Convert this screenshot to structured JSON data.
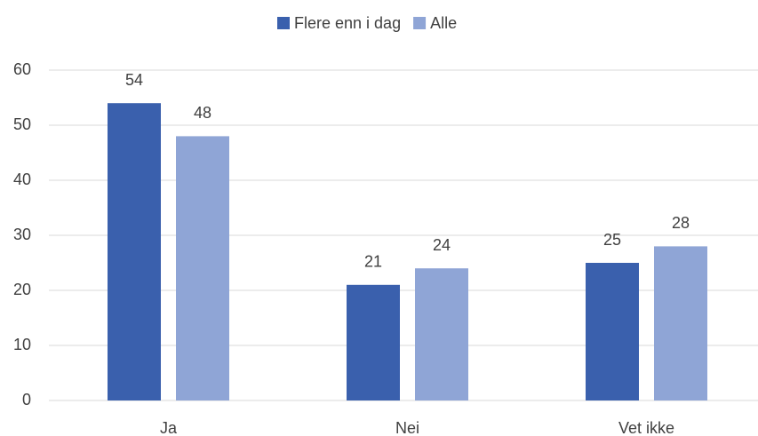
{
  "chart_data": {
    "type": "bar",
    "categories": [
      "Ja",
      "Nei",
      "Vet ikke"
    ],
    "series": [
      {
        "name": "Flere enn i dag",
        "color": "#3a60ad",
        "values": [
          54,
          21,
          25
        ]
      },
      {
        "name": "Alle",
        "color": "#8fa5d6",
        "values": [
          48,
          24,
          28
        ]
      }
    ],
    "ylim": [
      0,
      60
    ],
    "yticks": [
      0,
      10,
      20,
      30,
      40,
      50,
      60
    ],
    "grid": true,
    "legend": "top"
  }
}
